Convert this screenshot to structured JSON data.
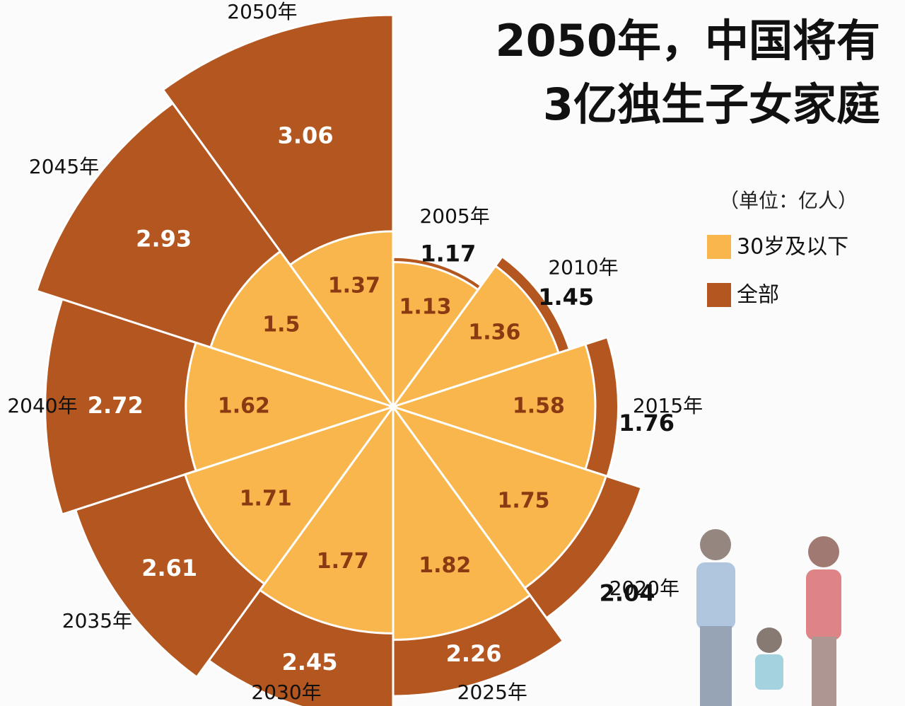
{
  "chart_data": {
    "type": "polar-area",
    "title": [
      "2050年，中国将有",
      "3亿独生子女家庭"
    ],
    "unit": "（单位：亿人）",
    "categories": [
      "2005年",
      "2010年",
      "2015年",
      "2020年",
      "2025年",
      "2030年",
      "2035年",
      "2040年",
      "2045年",
      "2050年"
    ],
    "series": [
      {
        "name": "30岁及以下",
        "color": "#f8b64c",
        "values": [
          1.13,
          1.36,
          1.58,
          1.75,
          1.82,
          1.77,
          1.71,
          1.62,
          1.5,
          1.37
        ]
      },
      {
        "name": "全部",
        "color": "#b3561f",
        "values": [
          1.17,
          1.45,
          1.76,
          2.04,
          2.26,
          2.45,
          2.61,
          2.72,
          2.93,
          3.06
        ]
      }
    ]
  }
}
